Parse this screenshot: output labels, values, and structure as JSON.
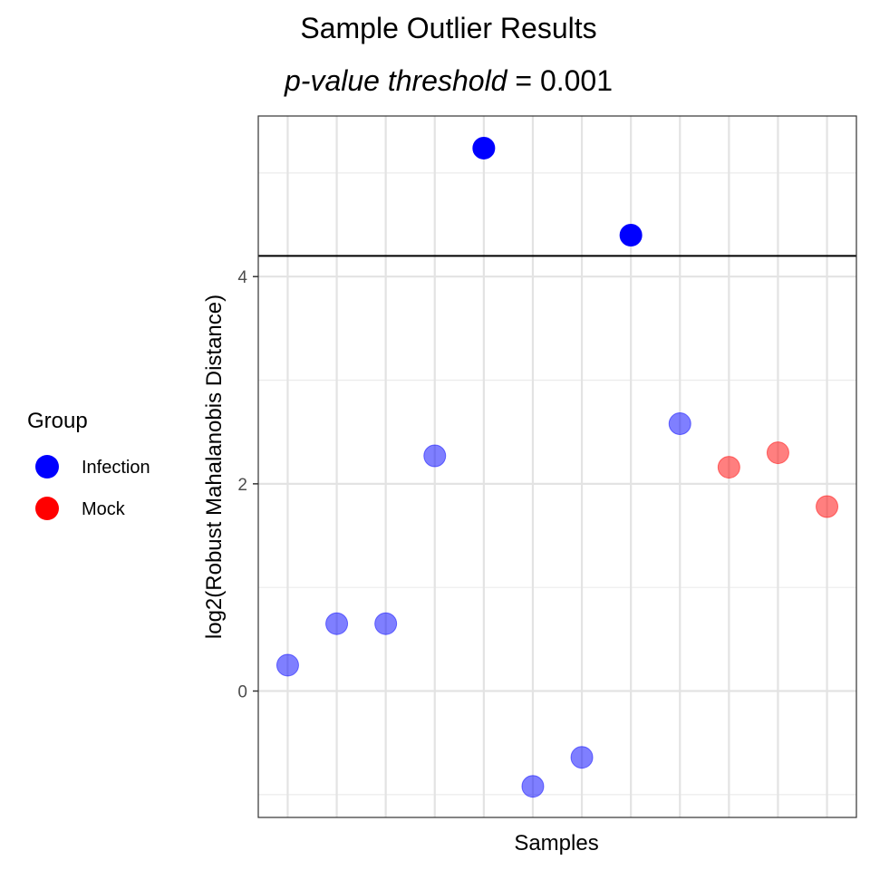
{
  "chart_data": {
    "type": "scatter",
    "title": "Sample Outlier Results",
    "subtitle": {
      "italic_part": "p-value threshold",
      "rest": " = 0.001"
    },
    "xlabel": "Samples",
    "ylabel": "log2(Robust Mahalanobis Distance)",
    "y_ticks": [
      0,
      2,
      4
    ],
    "ylim": [
      -1.22,
      5.55
    ],
    "threshold_y": 4.2,
    "grid": true,
    "legend": {
      "title": "Group",
      "placement": "left",
      "entries": [
        {
          "label": "Infection",
          "color": "#0000ff"
        },
        {
          "label": "Mock",
          "color": "#ff0000"
        }
      ]
    },
    "points": [
      {
        "x": 1,
        "y": 0.25,
        "group": "Infection",
        "outlier": false
      },
      {
        "x": 2,
        "y": 0.65,
        "group": "Infection",
        "outlier": false
      },
      {
        "x": 3,
        "y": 0.65,
        "group": "Infection",
        "outlier": false
      },
      {
        "x": 4,
        "y": 2.27,
        "group": "Infection",
        "outlier": false
      },
      {
        "x": 5,
        "y": 5.24,
        "group": "Infection",
        "outlier": true
      },
      {
        "x": 6,
        "y": -0.92,
        "group": "Infection",
        "outlier": false
      },
      {
        "x": 7,
        "y": -0.64,
        "group": "Infection",
        "outlier": false
      },
      {
        "x": 8,
        "y": 4.4,
        "group": "Infection",
        "outlier": true
      },
      {
        "x": 9,
        "y": 2.58,
        "group": "Infection",
        "outlier": false
      },
      {
        "x": 10,
        "y": 2.16,
        "group": "Mock",
        "outlier": false
      },
      {
        "x": 11,
        "y": 2.3,
        "group": "Mock",
        "outlier": false
      },
      {
        "x": 12,
        "y": 1.78,
        "group": "Mock",
        "outlier": false
      }
    ]
  }
}
